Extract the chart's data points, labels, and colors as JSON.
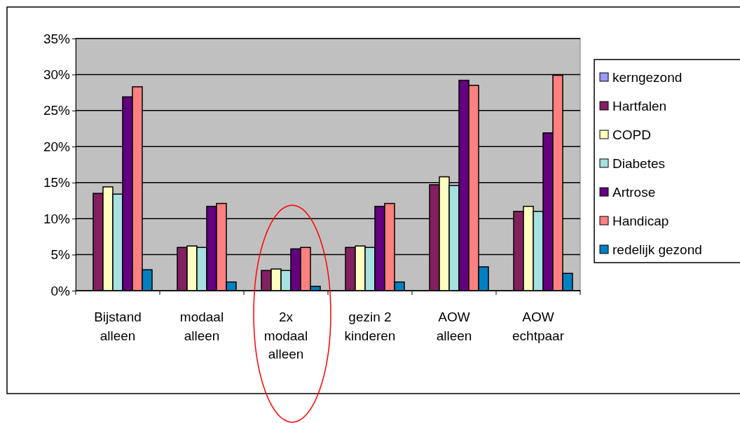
{
  "chart_data": {
    "type": "bar",
    "categories": [
      "Bijstand\nalleen",
      "modaal\nalleen",
      "2x\nmodaal\nalleen",
      "gezin 2\nkinderen",
      "AOW\nalleen",
      "AOW\nechtpaar"
    ],
    "series": [
      {
        "name": "kerngezond",
        "color": "#9999ff",
        "values": [
          0,
          0,
          0,
          0,
          0,
          0
        ]
      },
      {
        "name": "Hartfalen",
        "color": "#822060",
        "values": [
          13.5,
          6.0,
          2.8,
          6.0,
          14.7,
          11.0
        ]
      },
      {
        "name": "COPD",
        "color": "#ffffc0",
        "values": [
          14.4,
          6.2,
          3.0,
          6.2,
          15.8,
          11.7
        ]
      },
      {
        "name": "Diabetes",
        "color": "#a6e0e0",
        "values": [
          13.4,
          6.0,
          2.8,
          6.0,
          14.6,
          11.0
        ]
      },
      {
        "name": "Artrose",
        "color": "#620080",
        "values": [
          26.9,
          11.7,
          5.8,
          11.7,
          29.2,
          21.9
        ]
      },
      {
        "name": "Handicap",
        "color": "#ff8080",
        "values": [
          28.3,
          12.1,
          6.0,
          12.1,
          28.5,
          29.9
        ]
      },
      {
        "name": "redelijk  gezond",
        "color": "#0080c0",
        "values": [
          2.9,
          1.2,
          0.6,
          1.2,
          3.3,
          2.4
        ]
      }
    ],
    "ylim": [
      0,
      35
    ],
    "yticks": [
      {
        "value": 0,
        "label": "0%"
      },
      {
        "value": 5,
        "label": "5%"
      },
      {
        "value": 10,
        "label": "10%"
      },
      {
        "value": 15,
        "label": "15%"
      },
      {
        "value": 20,
        "label": "20%"
      },
      {
        "value": 25,
        "label": "25%"
      },
      {
        "value": 30,
        "label": "30%"
      },
      {
        "value": 35,
        "label": "35%"
      }
    ],
    "grid": "y",
    "legend": "right"
  }
}
